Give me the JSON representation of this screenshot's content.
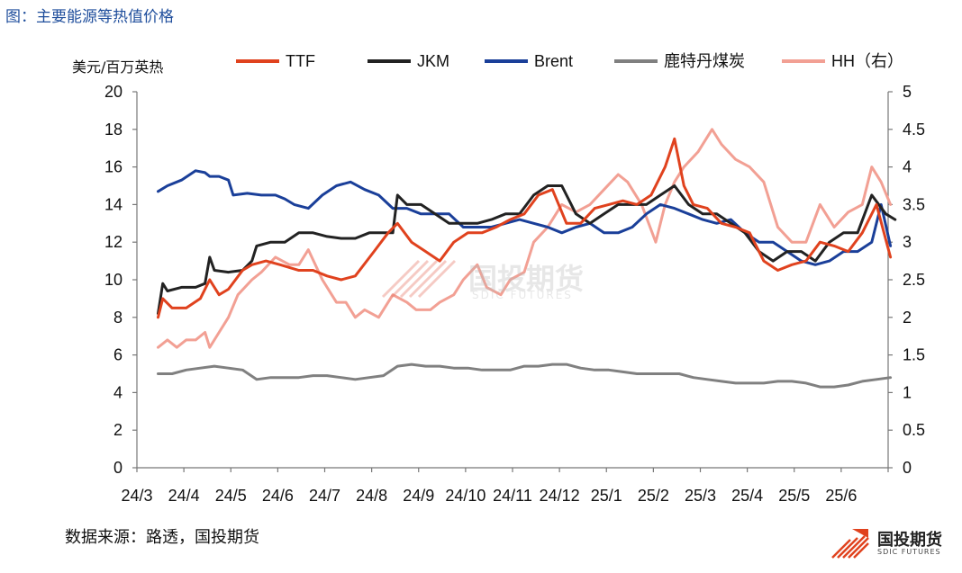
{
  "header": {
    "title": "图：主要能源等热值价格"
  },
  "source": "数据来源：路透，国投期货",
  "logo": {
    "name": "国投期货",
    "sub": "SDIC FUTURES"
  },
  "watermark": {
    "name": "国投期货",
    "sub": "SDIC FUTURES"
  },
  "chart_data": {
    "type": "line",
    "ylabel_left": "美元/百万英热",
    "ylim_left": [
      0,
      20
    ],
    "yticks_left": [
      0,
      2,
      4,
      6,
      8,
      10,
      12,
      14,
      16,
      18,
      20
    ],
    "ylim_right": [
      0,
      5
    ],
    "yticks_right": [
      "0",
      "0.5",
      "1",
      "1.5",
      "2",
      "2.5",
      "3",
      "3.5",
      "4",
      "4.5",
      "5"
    ],
    "x_ticks": [
      "24/3",
      "24/4",
      "24/5",
      "24/6",
      "24/7",
      "24/8",
      "24/9",
      "24/10",
      "24/11",
      "24/12",
      "25/1",
      "25/2",
      "25/3",
      "25/4",
      "25/5",
      "25/6"
    ],
    "legend_position": "top",
    "series": [
      {
        "name": "TTF",
        "axis": "left",
        "color": "#e0421e",
        "x": [
          0,
          0.1,
          0.3,
          0.6,
          0.9,
          1.1,
          1.3,
          1.5,
          1.8,
          2.0,
          2.3,
          2.6,
          3.0,
          3.3,
          3.6,
          3.9,
          4.2,
          4.6,
          4.9,
          5.1,
          5.4,
          5.7,
          6.0,
          6.3,
          6.6,
          6.9,
          7.2,
          7.5,
          7.8,
          8.1,
          8.4,
          8.7,
          9.0,
          9.3,
          9.6,
          9.9,
          10.2,
          10.5,
          10.8,
          11.0,
          11.2,
          11.4,
          11.7,
          12.0,
          12.3,
          12.6,
          12.9,
          13.2,
          13.5,
          13.8,
          14.1,
          14.4,
          14.7,
          15.0,
          15.3,
          15.6
        ],
        "values": [
          8.0,
          9.0,
          8.5,
          8.5,
          9.0,
          10.0,
          9.2,
          9.5,
          10.5,
          10.8,
          11.0,
          10.8,
          10.5,
          10.5,
          10.2,
          10.0,
          10.2,
          11.5,
          12.5,
          13.0,
          12.0,
          11.5,
          11.0,
          12.0,
          12.5,
          12.5,
          12.8,
          13.2,
          13.5,
          14.5,
          14.8,
          13.0,
          13.0,
          13.8,
          14.0,
          14.2,
          14.0,
          14.5,
          16.0,
          17.5,
          15.0,
          14.0,
          13.8,
          13.0,
          12.8,
          12.5,
          11.0,
          10.5,
          10.8,
          11.0,
          12.0,
          11.8,
          11.5,
          12.5,
          14.0,
          11.2
        ]
      },
      {
        "name": "JKM",
        "axis": "left",
        "color": "#222222",
        "x": [
          0,
          0.1,
          0.2,
          0.5,
          0.8,
          1.0,
          1.1,
          1.2,
          1.5,
          1.8,
          2.0,
          2.1,
          2.4,
          2.7,
          3.0,
          3.3,
          3.6,
          3.9,
          4.2,
          4.5,
          4.8,
          5.0,
          5.1,
          5.3,
          5.6,
          5.9,
          6.2,
          6.5,
          6.8,
          7.1,
          7.4,
          7.7,
          8.0,
          8.3,
          8.6,
          8.9,
          9.2,
          9.5,
          9.8,
          10.1,
          10.4,
          10.7,
          11.0,
          11.3,
          11.6,
          11.9,
          12.2,
          12.5,
          12.8,
          13.1,
          13.4,
          13.7,
          14.0,
          14.3,
          14.6,
          14.9,
          15.2,
          15.5,
          15.7
        ],
        "values": [
          8.2,
          9.8,
          9.4,
          9.6,
          9.6,
          9.8,
          11.2,
          10.5,
          10.4,
          10.5,
          11.0,
          11.8,
          12.0,
          12.0,
          12.5,
          12.5,
          12.3,
          12.2,
          12.2,
          12.5,
          12.5,
          12.5,
          14.5,
          14.0,
          14.0,
          13.5,
          13.0,
          13.0,
          13.0,
          13.2,
          13.5,
          13.5,
          14.5,
          15.0,
          15.0,
          13.5,
          13.0,
          13.5,
          14.0,
          14.0,
          14.0,
          14.5,
          15.0,
          14.0,
          13.5,
          13.5,
          13.0,
          12.5,
          11.5,
          11.0,
          11.5,
          11.5,
          11.0,
          12.0,
          12.5,
          12.5,
          14.5,
          13.5,
          13.2
        ]
      },
      {
        "name": "Brent",
        "axis": "left",
        "color": "#1a3f99",
        "x": [
          0,
          0.2,
          0.5,
          0.8,
          1.0,
          1.1,
          1.3,
          1.5,
          1.6,
          1.9,
          2.2,
          2.5,
          2.7,
          2.9,
          3.2,
          3.5,
          3.8,
          4.1,
          4.4,
          4.7,
          5.0,
          5.3,
          5.6,
          5.9,
          6.2,
          6.5,
          6.8,
          7.1,
          7.4,
          7.7,
          8.0,
          8.3,
          8.6,
          8.9,
          9.2,
          9.5,
          9.8,
          10.1,
          10.4,
          10.7,
          11.0,
          11.3,
          11.6,
          11.9,
          12.2,
          12.5,
          12.8,
          13.1,
          13.4,
          13.7,
          14.0,
          14.3,
          14.6,
          14.9,
          15.2,
          15.4,
          15.6
        ],
        "values": [
          14.7,
          15.0,
          15.3,
          15.8,
          15.7,
          15.5,
          15.5,
          15.3,
          14.5,
          14.6,
          14.5,
          14.5,
          14.3,
          14.0,
          13.8,
          14.5,
          15.0,
          15.2,
          14.8,
          14.5,
          13.8,
          13.8,
          13.5,
          13.5,
          13.5,
          12.8,
          12.8,
          12.8,
          13.0,
          13.2,
          13.0,
          12.8,
          12.5,
          12.8,
          13.0,
          12.5,
          12.5,
          12.8,
          13.5,
          14.0,
          13.8,
          13.5,
          13.2,
          13.0,
          13.2,
          12.5,
          12.0,
          12.0,
          11.5,
          11.0,
          10.8,
          11.0,
          11.5,
          11.5,
          12.0,
          14.0,
          11.8
        ]
      },
      {
        "name": "鹿特丹煤炭",
        "axis": "left",
        "color": "#808080",
        "x": [
          0,
          0.3,
          0.6,
          0.9,
          1.2,
          1.5,
          1.8,
          2.1,
          2.4,
          2.7,
          3.0,
          3.3,
          3.6,
          3.9,
          4.2,
          4.5,
          4.8,
          5.1,
          5.4,
          5.7,
          6.0,
          6.3,
          6.6,
          6.9,
          7.2,
          7.5,
          7.8,
          8.1,
          8.4,
          8.7,
          9.0,
          9.3,
          9.6,
          9.9,
          10.2,
          10.5,
          10.8,
          11.1,
          11.4,
          11.7,
          12.0,
          12.3,
          12.6,
          12.9,
          13.2,
          13.5,
          13.8,
          14.1,
          14.4,
          14.7,
          15.0,
          15.3,
          15.6
        ],
        "values": [
          5.0,
          5.0,
          5.2,
          5.3,
          5.4,
          5.3,
          5.2,
          4.7,
          4.8,
          4.8,
          4.8,
          4.9,
          4.9,
          4.8,
          4.7,
          4.8,
          4.9,
          5.4,
          5.5,
          5.4,
          5.4,
          5.3,
          5.3,
          5.2,
          5.2,
          5.2,
          5.4,
          5.4,
          5.5,
          5.5,
          5.3,
          5.2,
          5.2,
          5.1,
          5.0,
          5.0,
          5.0,
          5.0,
          4.8,
          4.7,
          4.6,
          4.5,
          4.5,
          4.5,
          4.6,
          4.6,
          4.5,
          4.3,
          4.3,
          4.4,
          4.6,
          4.7,
          4.8
        ]
      },
      {
        "name": "HH（右）",
        "axis": "right",
        "color": "#f2a094",
        "x": [
          0,
          0.2,
          0.4,
          0.6,
          0.8,
          1.0,
          1.1,
          1.3,
          1.5,
          1.7,
          2.0,
          2.2,
          2.5,
          2.8,
          3.0,
          3.2,
          3.5,
          3.8,
          4.0,
          4.2,
          4.4,
          4.7,
          5.0,
          5.3,
          5.5,
          5.8,
          6.0,
          6.3,
          6.5,
          6.8,
          7.0,
          7.3,
          7.5,
          7.8,
          8.0,
          8.3,
          8.6,
          8.9,
          9.2,
          9.5,
          9.8,
          10.0,
          10.3,
          10.6,
          10.8,
          11.0,
          11.2,
          11.5,
          11.8,
          12.0,
          12.3,
          12.6,
          12.9,
          13.2,
          13.5,
          13.8,
          14.1,
          14.4,
          14.7,
          15.0,
          15.2,
          15.4,
          15.6
        ],
        "values": [
          1.6,
          1.7,
          1.6,
          1.7,
          1.7,
          1.8,
          1.6,
          1.8,
          2.0,
          2.3,
          2.5,
          2.6,
          2.8,
          2.7,
          2.7,
          2.9,
          2.5,
          2.2,
          2.2,
          2.0,
          2.1,
          2.0,
          2.3,
          2.2,
          2.1,
          2.1,
          2.2,
          2.3,
          2.5,
          2.7,
          2.4,
          2.3,
          2.5,
          2.6,
          3.0,
          3.2,
          3.5,
          3.4,
          3.5,
          3.7,
          3.9,
          3.8,
          3.5,
          3.0,
          3.5,
          3.8,
          4.0,
          4.2,
          4.5,
          4.3,
          4.1,
          4.0,
          3.8,
          3.2,
          3.0,
          3.0,
          3.5,
          3.2,
          3.4,
          3.5,
          4.0,
          3.8,
          3.5
        ]
      }
    ]
  }
}
